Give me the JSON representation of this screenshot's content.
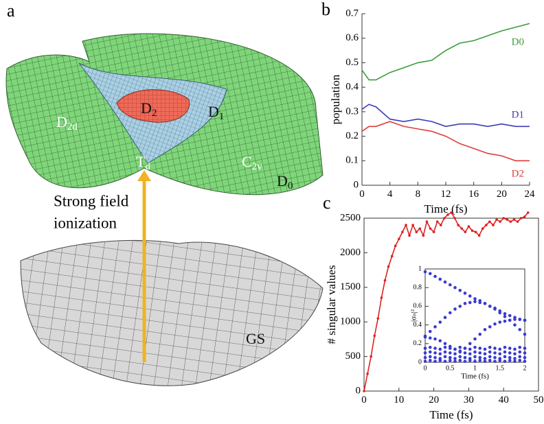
{
  "panel_labels": [
    "a",
    "b",
    "c"
  ],
  "illustration": {
    "labels": [
      {
        "base": "D",
        "sub": "2d"
      },
      {
        "base": "D",
        "sub": "2"
      },
      {
        "base": "D",
        "sub": "1"
      },
      {
        "base": "T",
        "sub": "d"
      },
      {
        "base": "C",
        "sub": "2v"
      },
      {
        "base": "D",
        "sub": "0"
      },
      {
        "base": "GS"
      }
    ],
    "ionization": [
      "Strong field",
      "ionization"
    ]
  },
  "chart_data": [
    {
      "type": "line",
      "ylabel": "population",
      "xlabel": "Time (fs)",
      "x": [
        0,
        1,
        2,
        4,
        6,
        8,
        10,
        12,
        14,
        16,
        18,
        20,
        22,
        24
      ],
      "series": [
        {
          "name": "D0",
          "color": "#3a9b3a",
          "values": [
            0.47,
            0.43,
            0.43,
            0.46,
            0.48,
            0.5,
            0.51,
            0.55,
            0.58,
            0.59,
            0.61,
            0.63,
            0.645,
            0.66
          ]
        },
        {
          "name": "D1",
          "color": "#3b3bb5",
          "values": [
            0.31,
            0.33,
            0.32,
            0.27,
            0.26,
            0.27,
            0.26,
            0.24,
            0.25,
            0.25,
            0.24,
            0.25,
            0.24,
            0.24
          ]
        },
        {
          "name": "D2",
          "color": "#e03a3a",
          "values": [
            0.22,
            0.24,
            0.24,
            0.26,
            0.24,
            0.23,
            0.22,
            0.2,
            0.17,
            0.15,
            0.13,
            0.12,
            0.1,
            0.1
          ]
        }
      ],
      "xlim": [
        0,
        24
      ],
      "xticks": [
        0,
        4,
        8,
        12,
        16,
        20,
        24
      ],
      "ylim": [
        0,
        0.7
      ],
      "yticks": [
        0,
        0.1,
        0.2,
        0.3,
        0.4,
        0.5,
        0.6,
        0.7
      ],
      "frame": false,
      "markers": false
    },
    {
      "type": "line",
      "ylabel": "# singular values",
      "xlabel": "Time (fs)",
      "x": [
        0,
        1,
        2,
        3,
        4,
        5,
        6,
        7,
        8,
        9,
        10,
        11,
        12,
        13,
        14,
        15,
        16,
        17,
        18,
        19,
        20,
        21,
        22,
        23,
        24,
        25,
        26,
        27,
        28,
        29,
        30,
        31,
        32,
        33,
        34,
        35,
        36,
        37,
        38,
        39,
        40,
        41,
        42,
        43,
        44,
        45,
        46,
        47
      ],
      "series": [
        {
          "color": "#e02020",
          "values": [
            0,
            250,
            500,
            800,
            1050,
            1350,
            1600,
            1800,
            1950,
            2100,
            2200,
            2300,
            2400,
            2250,
            2400,
            2300,
            2350,
            2250,
            2450,
            2350,
            2300,
            2450,
            2400,
            2500,
            2550,
            2580,
            2500,
            2400,
            2350,
            2300,
            2380,
            2320,
            2300,
            2250,
            2350,
            2400,
            2450,
            2400,
            2480,
            2450,
            2500,
            2480,
            2450,
            2480,
            2450,
            2500,
            2520,
            2580
          ]
        }
      ],
      "xlim": [
        0,
        50
      ],
      "xticks": [
        0,
        10,
        20,
        30,
        40,
        50
      ],
      "ylim": [
        0,
        2500
      ],
      "yticks": [
        0,
        500,
        1000,
        1500,
        2000,
        2500
      ],
      "frame": true,
      "markers": true
    },
    {
      "type": "scatter",
      "ylabel": "|σₙ|²",
      "xlabel": "Time (fs)",
      "x": [
        0,
        0.1,
        0.2,
        0.3,
        0.4,
        0.5,
        0.6,
        0.7,
        0.8,
        0.9,
        1,
        1.1,
        1.2,
        1.3,
        1.4,
        1.5,
        1.6,
        1.7,
        1.8,
        1.9,
        2
      ],
      "series": [
        {
          "color": "#3a3ad0",
          "values": [
            0.97,
            0.95,
            0.92,
            0.89,
            0.86,
            0.83,
            0.8,
            0.77,
            0.74,
            0.71,
            0.68,
            0.66,
            0.63,
            0.6,
            0.58,
            0.55,
            0.52,
            0.5,
            0.48,
            0.46,
            0.45
          ]
        },
        {
          "color": "#3a3ad0",
          "values": [
            0.28,
            0.33,
            0.38,
            0.43,
            0.48,
            0.53,
            0.57,
            0.6,
            0.63,
            0.64,
            0.65,
            0.64,
            0.63,
            0.6,
            0.57,
            0.53,
            0.49,
            0.45,
            0.4,
            0.35,
            0.3
          ]
        },
        {
          "color": "#3a3ad0",
          "values": [
            0.27,
            0.26,
            0.25,
            0.23,
            0.2,
            0.17,
            0.14,
            0.12,
            0.15,
            0.2,
            0.25,
            0.3,
            0.35,
            0.38,
            0.41,
            0.43,
            0.44,
            0.45,
            0.46,
            0.46,
            0.45
          ]
        },
        {
          "color": "#3a3ad0",
          "values": [
            0.15,
            0.16,
            0.15,
            0.14,
            0.16,
            0.15,
            0.14,
            0.16,
            0.15,
            0.14,
            0.16,
            0.15,
            0.14,
            0.16,
            0.15,
            0.14,
            0.16,
            0.15,
            0.14,
            0.16,
            0.15
          ]
        },
        {
          "color": "#3a3ad0",
          "values": [
            0.1,
            0.11,
            0.1,
            0.09,
            0.11,
            0.1,
            0.09,
            0.11,
            0.1,
            0.09,
            0.11,
            0.1,
            0.09,
            0.11,
            0.1,
            0.09,
            0.11,
            0.1,
            0.09,
            0.11,
            0.1
          ]
        },
        {
          "color": "#3a3ad0",
          "values": [
            0.05,
            0.06,
            0.05,
            0.04,
            0.06,
            0.05,
            0.04,
            0.06,
            0.05,
            0.04,
            0.06,
            0.05,
            0.04,
            0.06,
            0.05,
            0.04,
            0.06,
            0.05,
            0.04,
            0.06,
            0.05
          ]
        },
        {
          "color": "#3a3ad0",
          "values": [
            0.01,
            0.02,
            0.01,
            0.02,
            0.01,
            0.02,
            0.01,
            0.02,
            0.01,
            0.02,
            0.01,
            0.02,
            0.01,
            0.02,
            0.01,
            0.02,
            0.01,
            0.02,
            0.01,
            0.02,
            0.01
          ]
        }
      ],
      "xlim": [
        0,
        2
      ],
      "xticks": [
        0,
        0.5,
        1,
        1.5,
        2
      ],
      "ylim": [
        0,
        1
      ],
      "yticks": [
        0,
        0.2,
        0.4,
        0.6,
        0.8,
        1
      ],
      "frame": true,
      "markers": true
    }
  ]
}
